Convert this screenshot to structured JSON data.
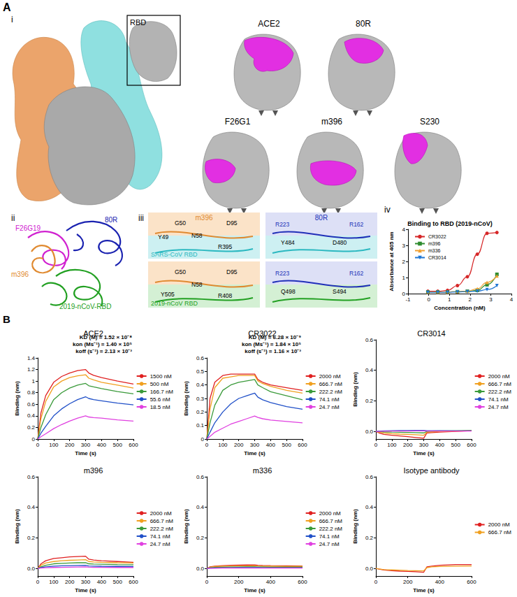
{
  "figure": {
    "A": {
      "label": "A",
      "i": {
        "label": "i",
        "rbd_box": "RBD",
        "complexes": [
          "ACE2",
          "80R",
          "F26G1",
          "m396",
          "S230"
        ]
      },
      "ii": {
        "label": "ii",
        "chains": [
          "80R",
          "F26G19",
          "m396",
          "2019-nCoV-RBD"
        ]
      },
      "iii": {
        "label": "iii",
        "antibodies": [
          "m396",
          "80R"
        ],
        "rows": [
          {
            "rbd": "SARS-CoV RBD",
            "m396": [
              "G50",
              "D95",
              "Y49",
              "N58",
              "R395"
            ],
            "80R": [
              "R223",
              "R162",
              "Y484",
              "D480"
            ]
          },
          {
            "rbd": "2019-nCoV RBD",
            "m396": [
              "G50",
              "D95",
              "N58",
              "Y505",
              "R408"
            ],
            "80R": [
              "R223",
              "R162",
              "Q498",
              "S494"
            ]
          }
        ]
      },
      "iv": {
        "label": "iv"
      }
    },
    "B": {
      "label": "B"
    }
  },
  "chart_data": [
    {
      "type": "line",
      "title": "Binding to RBD (2019-nCoV)",
      "x_label": "Concentration (nM)",
      "y_label": "Absorbance at 405 nm",
      "xlim": [
        -1,
        4
      ],
      "xticks": [
        -1,
        0,
        1,
        2,
        3,
        4
      ],
      "ylim": [
        0,
        4
      ],
      "yticks": [
        0,
        1,
        2,
        3,
        4
      ],
      "legend": "upper left",
      "x": [
        -0.04,
        0.44,
        0.91,
        1.39,
        1.87,
        2.35,
        2.82,
        3.3
      ],
      "series": [
        {
          "name": "CR3022",
          "color": "#d62728",
          "marker": "circle",
          "line_style": "smooth",
          "values": [
            0.15,
            0.15,
            0.2,
            0.5,
            1.05,
            2.45,
            3.75,
            3.8
          ]
        },
        {
          "name": "m396",
          "color": "#2e8b2e",
          "marker": "square",
          "line_style": "smooth",
          "values": [
            0.1,
            0.1,
            0.1,
            0.12,
            0.15,
            0.2,
            0.55,
            1.2
          ]
        },
        {
          "name": "m336",
          "color": "#f0a030",
          "marker": "triangle",
          "line_style": "smooth",
          "values": [
            0.1,
            0.1,
            0.1,
            0.12,
            0.15,
            0.3,
            0.7,
            1.1
          ]
        },
        {
          "name": "CR3014",
          "color": "#1f77d4",
          "marker": "triangle-down",
          "line_style": "smooth",
          "values": [
            0.08,
            0.08,
            0.08,
            0.1,
            0.12,
            0.15,
            0.25,
            0.5
          ]
        }
      ]
    },
    {
      "type": "line",
      "title": "ACE2",
      "x_label": "Time (s)",
      "y_label": "Binding (nm)",
      "xlim": [
        0,
        600
      ],
      "xticks": [
        0,
        100,
        200,
        300,
        400,
        500,
        600
      ],
      "ylim": [
        0,
        1.4
      ],
      "yticks": [
        0,
        0.2,
        0.4,
        0.6,
        0.8,
        1,
        1.2,
        1.4
      ],
      "legend": "right",
      "annotations": [
        "KD (M) = 1.52 × 10⁻⁸",
        "kon (Ms⁻¹) = 1.40 × 10⁵",
        "koff (s⁻¹) = 2.13 × 10⁻³"
      ],
      "x": [
        0,
        20,
        50,
        100,
        150,
        200,
        250,
        300,
        320,
        350,
        400,
        500,
        600
      ],
      "series": [
        {
          "name": "1500 nM",
          "color": "#e02020",
          "line_style": "solid",
          "values": [
            0,
            0.45,
            0.75,
            0.98,
            1.08,
            1.14,
            1.18,
            1.2,
            1.14,
            1.1,
            1.06,
            1.0,
            0.95
          ]
        },
        {
          "name": "500 nM",
          "color": "#f0a020",
          "line_style": "solid",
          "values": [
            0,
            0.35,
            0.65,
            0.9,
            1.0,
            1.06,
            1.09,
            1.11,
            1.05,
            1.02,
            0.98,
            0.93,
            0.88
          ]
        },
        {
          "name": "166.7 nM",
          "color": "#3a9a3a",
          "line_style": "solid",
          "values": [
            0,
            0.2,
            0.42,
            0.68,
            0.8,
            0.88,
            0.93,
            0.96,
            0.92,
            0.9,
            0.87,
            0.82,
            0.78
          ]
        },
        {
          "name": "55.6 nM",
          "color": "#2050c8",
          "line_style": "solid",
          "values": [
            0,
            0.1,
            0.22,
            0.4,
            0.52,
            0.61,
            0.68,
            0.73,
            0.7,
            0.68,
            0.66,
            0.62,
            0.59
          ]
        },
        {
          "name": "18.5 nM",
          "color": "#e040e0",
          "line_style": "solid",
          "values": [
            0,
            0.04,
            0.09,
            0.18,
            0.25,
            0.31,
            0.36,
            0.4,
            0.38,
            0.37,
            0.36,
            0.33,
            0.31
          ]
        }
      ]
    },
    {
      "type": "line",
      "title": "CR3022",
      "x_label": "Time (s)",
      "y_label": "Binding (nm)",
      "xlim": [
        0,
        600
      ],
      "xticks": [
        0,
        100,
        200,
        300,
        400,
        500,
        600
      ],
      "ylim": [
        0,
        0.6
      ],
      "yticks": [
        0,
        0.1,
        0.2,
        0.3,
        0.4,
        0.5,
        0.6
      ],
      "legend": "right",
      "annotations": [
        "KD (M) = 6.28 × 10⁻⁹",
        "kon (Ms⁻¹) = 1.84 × 10⁵",
        "koff (s⁻¹) = 1.16 × 10⁻³"
      ],
      "x": [
        0,
        20,
        50,
        100,
        150,
        200,
        250,
        300,
        320,
        350,
        400,
        500,
        600
      ],
      "series": [
        {
          "name": "2000 nM",
          "color": "#e02020",
          "line_style": "solid",
          "values": [
            0,
            0.3,
            0.42,
            0.47,
            0.48,
            0.48,
            0.48,
            0.48,
            0.44,
            0.42,
            0.4,
            0.38,
            0.36
          ]
        },
        {
          "name": "666.7 nM",
          "color": "#f0a020",
          "line_style": "solid",
          "values": [
            0,
            0.22,
            0.38,
            0.45,
            0.46,
            0.47,
            0.47,
            0.47,
            0.43,
            0.41,
            0.39,
            0.36,
            0.34
          ]
        },
        {
          "name": "222.2 nM",
          "color": "#3a9a3a",
          "line_style": "solid",
          "values": [
            0,
            0.12,
            0.25,
            0.36,
            0.4,
            0.42,
            0.43,
            0.44,
            0.4,
            0.38,
            0.35,
            0.32,
            0.29
          ]
        },
        {
          "name": "74.1 nM",
          "color": "#2050c8",
          "line_style": "solid",
          "values": [
            0,
            0.05,
            0.12,
            0.2,
            0.26,
            0.3,
            0.32,
            0.34,
            0.31,
            0.29,
            0.27,
            0.24,
            0.22
          ]
        },
        {
          "name": "24.7 nM",
          "color": "#e040e0",
          "line_style": "solid",
          "values": [
            0,
            0.02,
            0.05,
            0.08,
            0.11,
            0.13,
            0.15,
            0.17,
            0.16,
            0.15,
            0.14,
            0.13,
            0.12
          ]
        }
      ]
    },
    {
      "type": "line",
      "title": "CR3014",
      "x_label": "Time (s)",
      "y_label": "Binding (nm)",
      "xlim": [
        0,
        600
      ],
      "xticks": [
        0,
        100,
        200,
        300,
        400,
        500,
        600
      ],
      "ylim": [
        -0.05,
        0.6
      ],
      "yticks": [
        {
          "value": 0,
          "label": "0.0"
        },
        0.2,
        0.4,
        0.6
      ],
      "legend": "right",
      "x": [
        0,
        20,
        50,
        100,
        150,
        200,
        250,
        300,
        320,
        350,
        400,
        500,
        600
      ],
      "series": [
        {
          "name": "2000 nM",
          "color": "#e02020",
          "line_style": "solid",
          "values": [
            0,
            -0.01,
            -0.02,
            -0.025,
            -0.03,
            -0.035,
            -0.04,
            -0.045,
            -0.01,
            -0.008,
            -0.005,
            0,
            0.005
          ]
        },
        {
          "name": "666.7 nM",
          "color": "#f0a020",
          "line_style": "solid",
          "values": [
            0,
            -0.005,
            -0.01,
            -0.015,
            -0.018,
            -0.02,
            -0.022,
            -0.025,
            -0.005,
            -0.003,
            0,
            0.002,
            0.004
          ]
        },
        {
          "name": "222.2 nM",
          "color": "#3a9a3a",
          "line_style": "solid",
          "values": [
            0,
            0,
            -0.003,
            -0.005,
            -0.006,
            -0.007,
            -0.008,
            -0.01,
            0,
            0.002,
            0.003,
            0.004,
            0.005
          ]
        },
        {
          "name": "74.1 nM",
          "color": "#2050c8",
          "line_style": "solid",
          "values": [
            0,
            0.002,
            0.003,
            0.004,
            0.005,
            0.005,
            0.006,
            0.006,
            0.004,
            0.004,
            0.004,
            0.003,
            0.003
          ]
        },
        {
          "name": "24.7 nM",
          "color": "#e040e0",
          "line_style": "solid",
          "values": [
            0,
            0,
            0.001,
            0.002,
            0.002,
            0.002,
            0.003,
            0.003,
            0.002,
            0.002,
            0.002,
            0.002,
            0.002
          ]
        }
      ]
    },
    {
      "type": "line",
      "title": "m396",
      "x_label": "Time (s)",
      "y_label": "Binding (nm)",
      "xlim": [
        0,
        600
      ],
      "xticks": [
        0,
        100,
        200,
        300,
        400,
        500,
        600
      ],
      "ylim": [
        -0.05,
        0.6
      ],
      "yticks": [
        {
          "value": 0,
          "label": "0.0"
        },
        0.2,
        0.4,
        0.6
      ],
      "legend": "right",
      "x": [
        0,
        20,
        50,
        100,
        150,
        200,
        250,
        300,
        320,
        350,
        400,
        500,
        600
      ],
      "series": [
        {
          "name": "2000 nM",
          "color": "#e02020",
          "line_style": "solid",
          "values": [
            0,
            0.03,
            0.05,
            0.065,
            0.07,
            0.075,
            0.078,
            0.08,
            0.06,
            0.055,
            0.05,
            0.045,
            0.04
          ]
        },
        {
          "name": "666.7 nM",
          "color": "#f0a020",
          "line_style": "solid",
          "values": [
            0,
            0.02,
            0.035,
            0.045,
            0.05,
            0.053,
            0.055,
            0.057,
            0.045,
            0.042,
            0.04,
            0.037,
            0.035
          ]
        },
        {
          "name": "222.2 nM",
          "color": "#3a9a3a",
          "line_style": "solid",
          "values": [
            0,
            0.01,
            0.02,
            0.03,
            0.033,
            0.035,
            0.037,
            0.038,
            0.03,
            0.028,
            0.027,
            0.025,
            0.024
          ]
        },
        {
          "name": "74.1 nM",
          "color": "#2050c8",
          "line_style": "solid",
          "values": [
            0,
            0.005,
            0.01,
            0.015,
            0.017,
            0.018,
            0.019,
            0.02,
            0.016,
            0.015,
            0.014,
            0.013,
            0.012
          ]
        },
        {
          "name": "24.7 nM",
          "color": "#e040e0",
          "line_style": "solid",
          "values": [
            0,
            0.002,
            0.004,
            0.006,
            0.007,
            0.008,
            0.009,
            0.01,
            0.008,
            0.007,
            0.007,
            0.006,
            0.006
          ]
        }
      ]
    },
    {
      "type": "line",
      "title": "m336",
      "x_label": "Time (s)",
      "y_label": "Binding (nm)",
      "xlim": [
        0,
        600
      ],
      "xticks": [
        0,
        200,
        400,
        600
      ],
      "ylim": [
        -0.05,
        0.6
      ],
      "yticks": [
        {
          "value": 0,
          "label": "0.0"
        },
        0.2,
        0.4,
        0.6
      ],
      "legend": "right",
      "x": [
        0,
        20,
        50,
        100,
        150,
        200,
        250,
        300,
        320,
        350,
        400,
        500,
        600
      ],
      "series": [
        {
          "name": "2000 nM",
          "color": "#e02020",
          "line_style": "solid",
          "values": [
            0,
            0.01,
            0.015,
            0.018,
            0.02,
            0.021,
            0.022,
            0.023,
            0.02,
            0.019,
            0.018,
            0.017,
            0.016
          ]
        },
        {
          "name": "666.7 nM",
          "color": "#f0a020",
          "line_style": "solid",
          "values": [
            0,
            0.008,
            0.012,
            0.014,
            0.015,
            0.016,
            0.016,
            0.017,
            0.015,
            0.014,
            0.014,
            0.013,
            0.013
          ]
        },
        {
          "name": "222.2 nM",
          "color": "#3a9a3a",
          "line_style": "solid",
          "values": [
            0,
            0.004,
            0.006,
            0.008,
            0.009,
            0.009,
            0.01,
            0.01,
            0.009,
            0.009,
            0.008,
            0.008,
            0.008
          ]
        },
        {
          "name": "74.1 nM",
          "color": "#2050c8",
          "line_style": "solid",
          "values": [
            0,
            0.002,
            0.003,
            0.004,
            0.004,
            0.005,
            0.005,
            0.005,
            0.005,
            0.004,
            0.004,
            0.004,
            0.004
          ]
        },
        {
          "name": "24.7 nM",
          "color": "#e040e0",
          "line_style": "solid",
          "values": [
            0,
            0.001,
            0.001,
            0.002,
            0.002,
            0.002,
            0.002,
            0.002,
            0.002,
            0.002,
            0.002,
            0.002,
            0.002
          ]
        }
      ]
    },
    {
      "type": "line",
      "title": "Isotype antibody",
      "x_label": "Time (s)",
      "y_label": "Binding (nm)",
      "xlim": [
        0,
        600
      ],
      "xticks": [
        0,
        200,
        400,
        600
      ],
      "ylim": [
        -0.05,
        0.6
      ],
      "yticks": [
        {
          "value": 0,
          "label": "0.0"
        },
        0.2,
        0.4,
        0.6
      ],
      "legend": "right",
      "x": [
        0,
        20,
        50,
        100,
        150,
        200,
        250,
        300,
        320,
        350,
        400,
        500,
        600
      ],
      "series": [
        {
          "name": "2000 nM",
          "color": "#e02020",
          "line_style": "solid",
          "values": [
            0,
            -0.005,
            -0.01,
            -0.015,
            -0.018,
            -0.02,
            -0.022,
            -0.025,
            0.01,
            0.015,
            0.02,
            0.025,
            0.025
          ]
        },
        {
          "name": "666.7 nM",
          "color": "#f0a020",
          "line_style": "solid",
          "values": [
            0,
            -0.004,
            -0.008,
            -0.01,
            -0.012,
            -0.014,
            -0.015,
            -0.016,
            0.005,
            0.01,
            0.012,
            0.015,
            0.016
          ]
        }
      ]
    }
  ]
}
